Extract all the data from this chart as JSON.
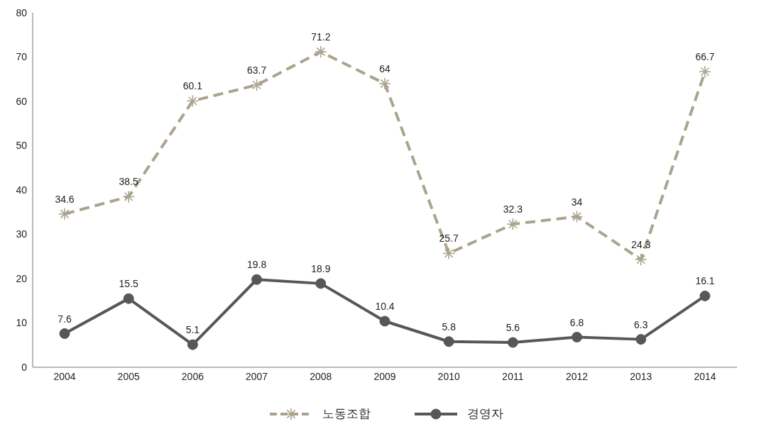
{
  "chart_data": {
    "type": "line",
    "categories": [
      "2004",
      "2005",
      "2006",
      "2007",
      "2008",
      "2009",
      "2010",
      "2011",
      "2012",
      "2013",
      "2014"
    ],
    "series": [
      {
        "name": "노동조합",
        "color": "#aba38e",
        "marker": "cross",
        "line_style": "dashed",
        "values": [
          34.6,
          38.5,
          60.1,
          63.7,
          71.2,
          64,
          25.7,
          32.3,
          34,
          24.3,
          66.7
        ]
      },
      {
        "name": "경영자",
        "color": "#575757",
        "marker": "circle",
        "line_style": "solid",
        "values": [
          7.6,
          15.5,
          5.1,
          19.8,
          18.9,
          10.4,
          5.8,
          5.6,
          6.8,
          6.3,
          16.1
        ]
      }
    ],
    "ylim": [
      0,
      80
    ],
    "yticks": [
      0,
      10,
      20,
      30,
      40,
      50,
      60,
      70,
      80
    ],
    "grid": false,
    "legend": "bottom",
    "data_labels": true
  }
}
